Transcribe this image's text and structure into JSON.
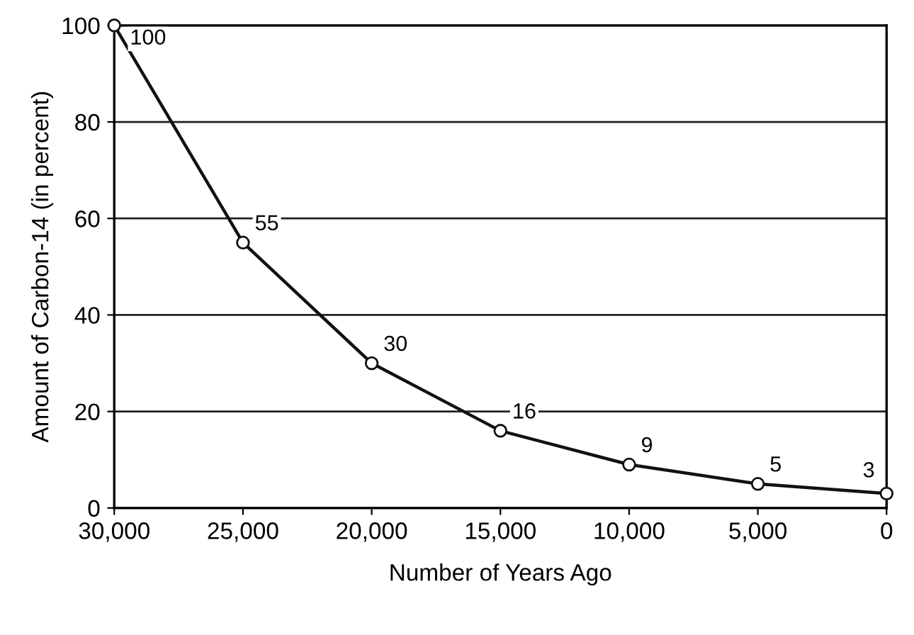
{
  "chart_data": {
    "type": "line",
    "xlabel": "Number of Years Ago",
    "ylabel": "Amount of Carbon-14 (in percent)",
    "x": [
      30000,
      25000,
      20000,
      15000,
      10000,
      5000,
      0
    ],
    "series": [
      {
        "color": "#111111",
        "values": [
          100,
          55,
          30,
          16,
          9,
          5,
          3
        ]
      }
    ],
    "xlim": [
      30000,
      0
    ],
    "xticks": [
      {
        "value": 30000,
        "label": "30,000"
      },
      {
        "value": 25000,
        "label": "25,000"
      },
      {
        "value": 20000,
        "label": "20,000"
      },
      {
        "value": 15000,
        "label": "15,000"
      },
      {
        "value": 10000,
        "label": "10,000"
      },
      {
        "value": 5000,
        "label": "5,000"
      },
      0
    ],
    "ylim": [
      0,
      100
    ],
    "yticks": [
      0,
      20,
      40,
      60,
      80,
      100
    ],
    "grid": "y",
    "marker": "circle",
    "line_style": "solid",
    "data_labels": true
  }
}
